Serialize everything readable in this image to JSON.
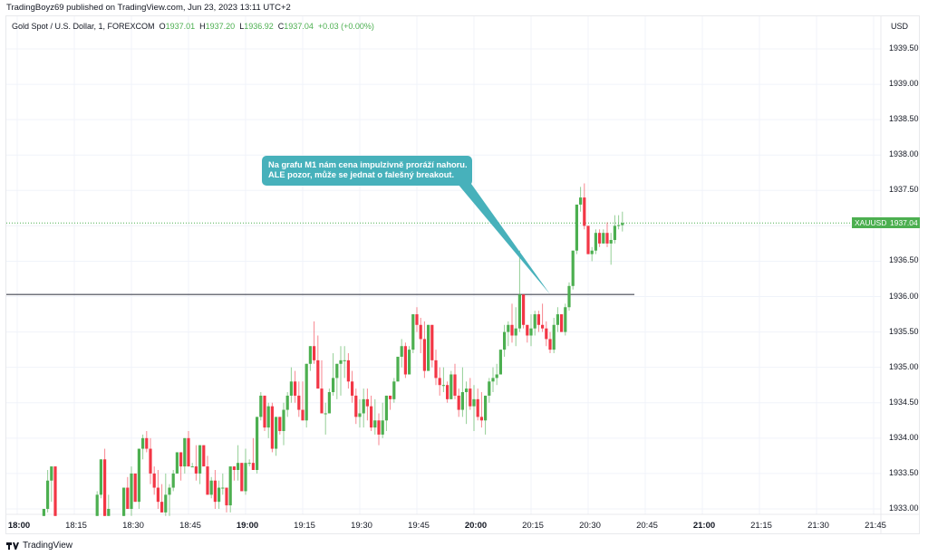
{
  "header": {
    "published": "TradingBoyz69 published on TradingView.com, Jun 23, 2023 13:11 UTC+2"
  },
  "legend": {
    "symbol": "Gold Spot / U.S. Dollar, 1, FOREXCOM",
    "o_label": "O",
    "o": "1937.01",
    "h_label": "H",
    "h": "1937.20",
    "l_label": "L",
    "l": "1936.92",
    "c_label": "C",
    "c": "1937.04",
    "change": "+0.03 (+0.00%)"
  },
  "price_axis": {
    "currency": "USD",
    "ticks": [
      "1939.50",
      "1939.00",
      "1938.50",
      "1938.00",
      "1937.50",
      "1937.00",
      "1936.50",
      "1936.00",
      "1935.50",
      "1935.00",
      "1934.50",
      "1934.00",
      "1933.50",
      "1933.00"
    ],
    "last_price_symbol": "XAUUSD",
    "last_price": "1937.04"
  },
  "time_axis": {
    "ticks": [
      {
        "label": "18:00",
        "bold": true
      },
      {
        "label": "18:15"
      },
      {
        "label": "18:30"
      },
      {
        "label": "18:45"
      },
      {
        "label": "19:00",
        "bold": true
      },
      {
        "label": "19:15"
      },
      {
        "label": "19:30"
      },
      {
        "label": "19:45"
      },
      {
        "label": "20:00",
        "bold": true
      },
      {
        "label": "20:15"
      },
      {
        "label": "20:30"
      },
      {
        "label": "20:45"
      },
      {
        "label": "21:00",
        "bold": true
      },
      {
        "label": "21:15"
      },
      {
        "label": "21:30"
      },
      {
        "label": "21:45"
      }
    ]
  },
  "annotation": {
    "line1": "Na grafu M1 nám cena impulzivně proráží nahoru.",
    "line2": "ALE pozor, může se jednat o falešný breakout.",
    "color": "#47b1bb"
  },
  "horizontal_line": {
    "price": 1936.03,
    "color": "#434651"
  },
  "colors": {
    "up": "#4caf50",
    "down": "#f23645",
    "grid": "#f0f3fa"
  },
  "footer": {
    "logo_text": "TradingView"
  },
  "chart_data": {
    "type": "candlestick",
    "title": "Gold Spot / U.S. Dollar, 1, FOREXCOM",
    "x_unit": "minutes after 18:00",
    "candles": [
      [
        7,
        1932.9,
        1933.0,
        1932.9,
        1933.0
      ],
      [
        8,
        1933.0,
        1933.55,
        1932.95,
        1933.4
      ],
      [
        9,
        1933.4,
        1933.6,
        1933.1,
        1933.6
      ],
      [
        10,
        1933.6,
        1933.6,
        1932.9,
        1932.9
      ],
      [
        21,
        1932.9,
        1933.25,
        1932.9,
        1933.2
      ],
      [
        22,
        1933.2,
        1933.7,
        1933.15,
        1933.7
      ],
      [
        23,
        1933.7,
        1933.85,
        1932.9,
        1932.9
      ],
      [
        24,
        1932.9,
        1933.2,
        1932.9,
        1933.0
      ],
      [
        28,
        1932.9,
        1933.3,
        1932.9,
        1933.3
      ],
      [
        29,
        1933.3,
        1933.45,
        1933.0,
        1933.0
      ],
      [
        30,
        1933.0,
        1933.6,
        1932.9,
        1933.5
      ],
      [
        31,
        1933.5,
        1933.5,
        1933.1,
        1933.1
      ],
      [
        32,
        1933.1,
        1933.85,
        1933.0,
        1933.85
      ],
      [
        33,
        1933.85,
        1934.05,
        1933.7,
        1934.0
      ],
      [
        34,
        1934.0,
        1934.1,
        1933.8,
        1933.85
      ],
      [
        35,
        1933.85,
        1934.0,
        1933.35,
        1933.5
      ],
      [
        36,
        1933.5,
        1933.6,
        1933.2,
        1933.3
      ],
      [
        37,
        1933.3,
        1933.55,
        1933.0,
        1933.1
      ],
      [
        38,
        1933.1,
        1933.35,
        1932.95,
        1932.95
      ],
      [
        39,
        1932.95,
        1933.5,
        1932.9,
        1933.2
      ],
      [
        40,
        1933.2,
        1933.35,
        1932.9,
        1933.3
      ],
      [
        41,
        1933.3,
        1933.55,
        1933.25,
        1933.5
      ],
      [
        42,
        1933.5,
        1933.8,
        1933.5,
        1933.8
      ],
      [
        43,
        1933.8,
        1933.8,
        1933.4,
        1933.6
      ],
      [
        44,
        1933.6,
        1934.0,
        1933.5,
        1934.0
      ],
      [
        45,
        1934.0,
        1934.1,
        1933.6,
        1933.6
      ],
      [
        46,
        1933.6,
        1933.65,
        1933.6,
        1933.6
      ],
      [
        47,
        1933.6,
        1933.9,
        1933.4,
        1933.5
      ],
      [
        48,
        1933.5,
        1933.9,
        1933.35,
        1933.9
      ],
      [
        49,
        1933.9,
        1933.9,
        1933.6,
        1933.6
      ],
      [
        50,
        1933.6,
        1933.75,
        1933.2,
        1933.2
      ],
      [
        51,
        1933.2,
        1933.45,
        1933.15,
        1933.4
      ],
      [
        52,
        1933.4,
        1933.55,
        1933.0,
        1933.1
      ],
      [
        53,
        1933.1,
        1933.4,
        1933.0,
        1933.3
      ],
      [
        54,
        1933.3,
        1933.5,
        1933.2,
        1933.3
      ],
      [
        55,
        1933.3,
        1933.3,
        1932.95,
        1933.05
      ],
      [
        56,
        1933.05,
        1933.6,
        1932.95,
        1933.6
      ],
      [
        57,
        1933.6,
        1933.6,
        1933.4,
        1933.55
      ],
      [
        58,
        1933.55,
        1933.9,
        1933.4,
        1933.65
      ],
      [
        59,
        1933.65,
        1933.65,
        1933.25,
        1933.25
      ],
      [
        60,
        1933.25,
        1933.85,
        1933.2,
        1933.65
      ],
      [
        61,
        1933.65,
        1933.7,
        1933.6,
        1933.65
      ],
      [
        62,
        1933.65,
        1934.0,
        1933.55,
        1933.55
      ],
      [
        63,
        1933.55,
        1934.3,
        1933.5,
        1934.3
      ],
      [
        64,
        1934.3,
        1934.65,
        1934.25,
        1934.6
      ],
      [
        65,
        1934.6,
        1934.6,
        1934.1,
        1934.15
      ],
      [
        66,
        1934.15,
        1934.5,
        1934.0,
        1934.45
      ],
      [
        67,
        1934.45,
        1934.5,
        1933.8,
        1933.85
      ],
      [
        68,
        1933.85,
        1934.3,
        1933.75,
        1934.3
      ],
      [
        69,
        1934.3,
        1934.3,
        1934.05,
        1934.1
      ],
      [
        70,
        1934.1,
        1934.5,
        1933.9,
        1934.4
      ],
      [
        71,
        1934.4,
        1934.65,
        1934.3,
        1934.6
      ],
      [
        72,
        1934.6,
        1935.0,
        1934.5,
        1934.8
      ],
      [
        73,
        1934.8,
        1934.95,
        1934.5,
        1934.6
      ],
      [
        74,
        1934.6,
        1934.8,
        1934.3,
        1934.4
      ],
      [
        75,
        1934.4,
        1934.8,
        1934.25,
        1934.25
      ],
      [
        76,
        1934.25,
        1935.05,
        1934.15,
        1935.05
      ],
      [
        77,
        1935.05,
        1935.3,
        1934.95,
        1935.3
      ],
      [
        78,
        1935.3,
        1935.65,
        1935.05,
        1935.1
      ],
      [
        79,
        1935.1,
        1935.45,
        1934.7,
        1934.7
      ],
      [
        80,
        1934.7,
        1935.1,
        1934.35,
        1934.35
      ],
      [
        81,
        1934.35,
        1934.5,
        1934.05,
        1934.35
      ],
      [
        82,
        1934.35,
        1934.7,
        1934.35,
        1934.65
      ],
      [
        83,
        1934.65,
        1935.2,
        1934.6,
        1934.85
      ],
      [
        84,
        1934.85,
        1935.05,
        1934.55,
        1935.05
      ],
      [
        85,
        1935.05,
        1935.3,
        1934.6,
        1935.1
      ],
      [
        86,
        1935.1,
        1935.3,
        1934.85,
        1935.1
      ],
      [
        87,
        1935.1,
        1935.2,
        1934.7,
        1934.8
      ],
      [
        88,
        1934.8,
        1934.95,
        1934.5,
        1934.6
      ],
      [
        89,
        1934.6,
        1934.7,
        1934.2,
        1934.3
      ],
      [
        90,
        1934.3,
        1934.55,
        1934.15,
        1934.35
      ],
      [
        91,
        1934.35,
        1934.7,
        1934.15,
        1934.55
      ],
      [
        92,
        1934.55,
        1934.7,
        1934.25,
        1934.45
      ],
      [
        93,
        1934.45,
        1934.6,
        1934.1,
        1934.15
      ],
      [
        94,
        1934.15,
        1934.55,
        1934.05,
        1934.25
      ],
      [
        95,
        1934.25,
        1934.35,
        1933.9,
        1934.05
      ],
      [
        96,
        1934.05,
        1934.5,
        1934.0,
        1934.25
      ],
      [
        97,
        1934.25,
        1934.6,
        1934.1,
        1934.6
      ],
      [
        98,
        1934.6,
        1934.6,
        1934.4,
        1934.55
      ],
      [
        99,
        1934.55,
        1934.85,
        1934.5,
        1934.8
      ],
      [
        100,
        1934.8,
        1935.15,
        1934.8,
        1935.15
      ],
      [
        101,
        1935.15,
        1935.4,
        1935.0,
        1935.3
      ],
      [
        102,
        1935.3,
        1935.35,
        1934.85,
        1934.9
      ],
      [
        103,
        1934.9,
        1935.3,
        1934.9,
        1935.25
      ],
      [
        104,
        1935.25,
        1935.75,
        1935.2,
        1935.75
      ],
      [
        105,
        1935.75,
        1935.85,
        1935.5,
        1935.6
      ],
      [
        106,
        1935.6,
        1935.7,
        1935.2,
        1935.4
      ],
      [
        107,
        1935.4,
        1935.65,
        1934.85,
        1934.95
      ],
      [
        108,
        1934.95,
        1935.6,
        1934.95,
        1935.6
      ],
      [
        109,
        1935.6,
        1935.6,
        1935.0,
        1935.1
      ],
      [
        110,
        1935.1,
        1935.25,
        1934.75,
        1934.85
      ],
      [
        111,
        1934.85,
        1935.0,
        1934.6,
        1934.75
      ],
      [
        112,
        1934.75,
        1935.0,
        1934.65,
        1934.75
      ],
      [
        113,
        1934.75,
        1934.8,
        1934.5,
        1934.55
      ],
      [
        114,
        1934.55,
        1934.95,
        1934.55,
        1934.9
      ],
      [
        115,
        1934.9,
        1935.05,
        1934.55,
        1934.6
      ],
      [
        116,
        1934.6,
        1934.7,
        1934.3,
        1934.4
      ],
      [
        117,
        1934.4,
        1935.0,
        1934.3,
        1934.65
      ],
      [
        118,
        1934.65,
        1934.8,
        1934.2,
        1934.7
      ],
      [
        119,
        1934.7,
        1934.85,
        1934.4,
        1934.45
      ],
      [
        120,
        1934.45,
        1934.75,
        1934.1,
        1934.55
      ],
      [
        121,
        1934.55,
        1934.7,
        1934.25,
        1934.3
      ],
      [
        122,
        1934.3,
        1934.65,
        1934.15,
        1934.25
      ],
      [
        123,
        1934.25,
        1934.6,
        1934.05,
        1934.6
      ],
      [
        124,
        1934.6,
        1934.85,
        1934.5,
        1934.8
      ],
      [
        125,
        1934.8,
        1935.0,
        1934.65,
        1934.85
      ],
      [
        126,
        1934.85,
        1935.05,
        1934.75,
        1934.9
      ],
      [
        127,
        1934.9,
        1935.25,
        1934.9,
        1935.25
      ],
      [
        128,
        1935.25,
        1935.6,
        1935.15,
        1935.5
      ],
      [
        129,
        1935.5,
        1935.65,
        1935.3,
        1935.6
      ],
      [
        130,
        1935.6,
        1935.9,
        1935.35,
        1935.45
      ],
      [
        131,
        1935.45,
        1935.85,
        1935.3,
        1935.55
      ],
      [
        132,
        1935.55,
        1936.65,
        1935.5,
        1936.03
      ],
      [
        133,
        1936.03,
        1936.0,
        1935.55,
        1935.6
      ],
      [
        134,
        1935.6,
        1935.6,
        1935.35,
        1935.45
      ],
      [
        135,
        1935.45,
        1935.75,
        1935.3,
        1935.55
      ],
      [
        136,
        1935.55,
        1935.8,
        1935.45,
        1935.75
      ],
      [
        137,
        1935.75,
        1935.8,
        1935.5,
        1935.6
      ],
      [
        138,
        1935.6,
        1935.9,
        1935.5,
        1935.55
      ],
      [
        139,
        1935.55,
        1935.65,
        1935.3,
        1935.4
      ],
      [
        140,
        1935.4,
        1935.5,
        1935.2,
        1935.25
      ],
      [
        141,
        1935.25,
        1935.7,
        1935.2,
        1935.6
      ],
      [
        142,
        1935.6,
        1935.85,
        1935.5,
        1935.75
      ],
      [
        143,
        1935.75,
        1935.75,
        1935.5,
        1935.5
      ],
      [
        144,
        1935.5,
        1935.9,
        1935.45,
        1935.85
      ],
      [
        145,
        1935.85,
        1936.2,
        1935.8,
        1936.15
      ],
      [
        146,
        1936.15,
        1936.65,
        1936.1,
        1936.65
      ],
      [
        147,
        1936.65,
        1937.0,
        1936.6,
        1937.3
      ],
      [
        148,
        1937.3,
        1937.55,
        1937.2,
        1937.4
      ],
      [
        149,
        1937.4,
        1937.6,
        1936.95,
        1937.0
      ],
      [
        150,
        1937.0,
        1937.0,
        1936.6,
        1936.6
      ],
      [
        151,
        1936.6,
        1936.7,
        1936.5,
        1936.65
      ],
      [
        152,
        1936.65,
        1936.95,
        1936.6,
        1936.9
      ],
      [
        153,
        1936.9,
        1936.95,
        1936.7,
        1936.75
      ],
      [
        154,
        1936.75,
        1936.95,
        1936.75,
        1936.9
      ],
      [
        155,
        1936.9,
        1937.05,
        1936.7,
        1936.75
      ],
      [
        156,
        1936.75,
        1936.9,
        1936.45,
        1936.8
      ],
      [
        157,
        1936.8,
        1937.15,
        1936.75,
        1937.0
      ],
      [
        158,
        1937.0,
        1937.15,
        1936.95,
        1937.01
      ],
      [
        159,
        1937.01,
        1937.2,
        1936.92,
        1937.04
      ]
    ]
  }
}
